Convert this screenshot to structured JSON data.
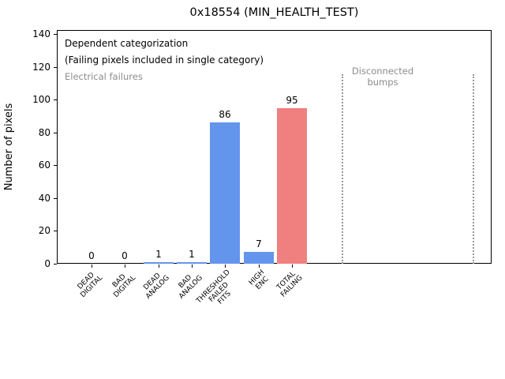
{
  "figure": {
    "title": "0x18554 (MIN_HEALTH_TEST)"
  },
  "chart_data": {
    "type": "bar",
    "title": "0x18554 (MIN_HEALTH_TEST)",
    "xlabel": "",
    "ylabel": "Number of pixels",
    "categories": [
      "DEAD DIGITAL",
      "BAD DIGITAL",
      "DEAD ANALOG",
      "BAD ANALOG",
      "THRESHOLD FAILED FITS",
      "HIGH ENC",
      "TOTAL FAILING"
    ],
    "category_tick_lines": [
      [
        "DEAD",
        "DIGITAL"
      ],
      [
        "BAD",
        "DIGITAL"
      ],
      [
        "DEAD",
        "ANALOG"
      ],
      [
        "BAD",
        "ANALOG"
      ],
      [
        "THRESHOLD",
        "FAILED",
        "FITS"
      ],
      [
        "HIGH",
        "ENC"
      ],
      [
        "TOTAL",
        "FAILING"
      ]
    ],
    "values": [
      0,
      0,
      1,
      1,
      86,
      7,
      95
    ],
    "value_labels": [
      "0",
      "0",
      "1",
      "1",
      "86",
      "7",
      "95"
    ],
    "bar_colors": [
      "#6495ED",
      "#6495ED",
      "#6495ED",
      "#6495ED",
      "#6495ED",
      "#6495ED",
      "#F08080"
    ],
    "yticks": [
      0,
      20,
      40,
      60,
      80,
      100,
      120,
      140
    ],
    "ylim": [
      0,
      142.5
    ],
    "grid": false,
    "legend": null,
    "annotations": {
      "dependent": "Dependent categorization\n(Failing pixels included in single category)",
      "electrical": "Electrical failures",
      "disconnected": "Disconnected\nbumps"
    },
    "vlines": [
      {
        "x_index": 7.5,
        "style": "dotted",
        "color": "#999999"
      },
      {
        "x_index": 11.4,
        "style": "dotted",
        "color": "#999999"
      }
    ]
  },
  "colors": {
    "bar_blue": "#6495ED",
    "bar_total_red": "#F08080",
    "gray_text": "#8c8c8c",
    "vline_gray": "#999999"
  }
}
